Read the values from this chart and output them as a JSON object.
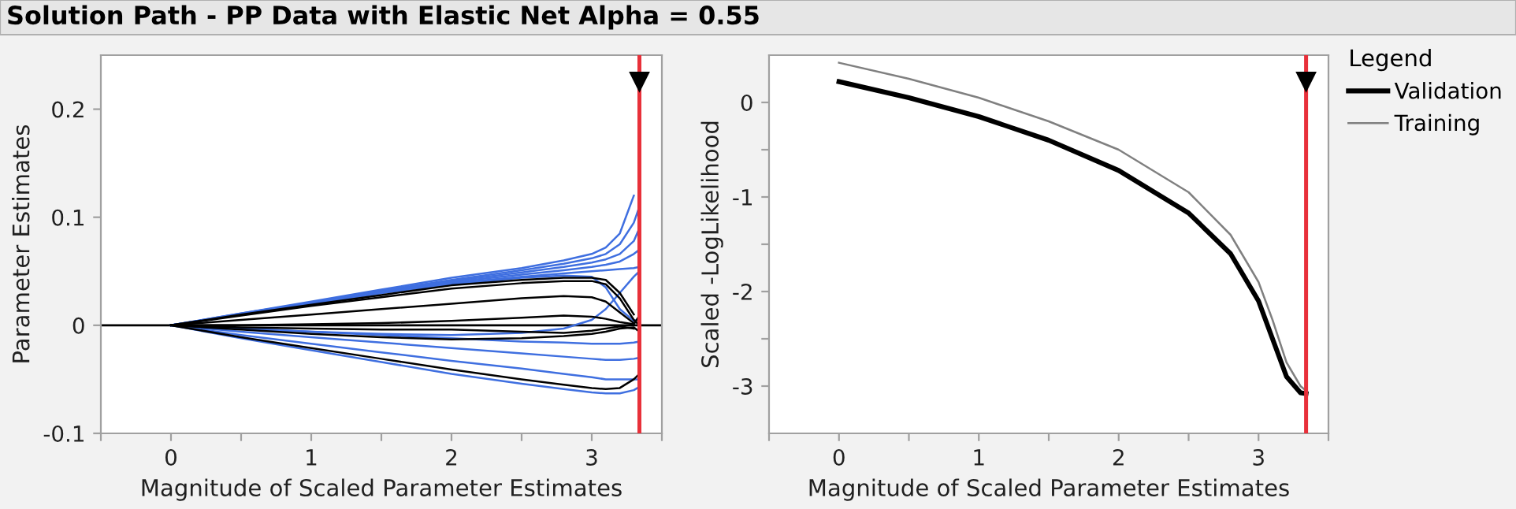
{
  "chart_data": [
    {
      "type": "line",
      "title": "Solution Path - PP Data with Elastic Net Alpha = 0.55",
      "xlabel": "Magnitude of Scaled Parameter Estimates",
      "ylabel": "Parameter Estimates",
      "x": [
        0,
        0.5,
        1,
        1.5,
        2,
        2.5,
        2.8,
        3.0,
        3.1,
        3.2,
        3.3,
        3.34
      ],
      "xlim": [
        -0.5,
        3.5
      ],
      "xticks": [
        {
          "value": -0.5,
          "label": null
        },
        0,
        {
          "value": 0.5,
          "label": null
        },
        1,
        {
          "value": 1.5,
          "label": null
        },
        2,
        {
          "value": 2.5,
          "label": null
        },
        3,
        {
          "value": 3.5,
          "label": null
        }
      ],
      "ylim": [
        -0.1,
        0.25
      ],
      "yticks": [
        -0.1,
        0,
        0.1,
        0.2
      ],
      "grid": false,
      "legend": false,
      "line_style": "solid",
      "marker": "none",
      "ref_lines": [
        {
          "axis": "y",
          "value": 0,
          "color": "#000000"
        },
        {
          "axis": "x",
          "value": 3.34,
          "color": "#e8303a"
        }
      ],
      "series": [
        {
          "color": "#3f6fe0",
          "values": [
            0,
            0.011,
            0.022,
            0.033,
            0.044,
            0.053,
            0.06,
            0.066,
            0.072,
            0.085,
            0.12,
            null
          ]
        },
        {
          "color": "#3f6fe0",
          "values": [
            0,
            0.011,
            0.021,
            0.032,
            0.042,
            0.051,
            0.057,
            0.062,
            0.066,
            0.075,
            0.095,
            0.11
          ]
        },
        {
          "color": "#3f6fe0",
          "values": [
            0,
            0.01,
            0.021,
            0.031,
            0.041,
            0.049,
            0.054,
            0.058,
            0.061,
            0.066,
            0.078,
            0.09
          ]
        },
        {
          "color": "#3f6fe0",
          "values": [
            0,
            0.01,
            0.02,
            0.03,
            0.04,
            0.047,
            0.051,
            0.054,
            0.056,
            0.059,
            0.066,
            0.07
          ]
        },
        {
          "color": "#3f6fe0",
          "values": [
            0,
            0.01,
            0.02,
            0.03,
            0.039,
            0.045,
            0.048,
            0.05,
            0.051,
            0.052,
            0.053,
            0.054
          ]
        },
        {
          "color": "#3f6fe0",
          "values": [
            0,
            0.01,
            0.02,
            0.03,
            0.038,
            0.044,
            0.046,
            0.045,
            0.035,
            0.015,
            0.004,
            0.006
          ]
        },
        {
          "color": "#000000",
          "values": [
            0,
            0.01,
            0.019,
            0.028,
            0.037,
            0.042,
            0.044,
            0.044,
            0.042,
            0.03,
            0.01,
            null
          ]
        },
        {
          "color": "#000000",
          "values": [
            0,
            0.009,
            0.018,
            0.026,
            0.034,
            0.039,
            0.041,
            0.041,
            0.038,
            0.025,
            0.005,
            0.0
          ]
        },
        {
          "color": "#000000",
          "values": [
            0,
            0.005,
            0.01,
            0.015,
            0.02,
            0.025,
            0.027,
            0.026,
            0.022,
            0.012,
            0.002,
            null
          ]
        },
        {
          "color": "#000000",
          "values": [
            0,
            0,
            0.001,
            0.002,
            0.004,
            0.007,
            0.009,
            0.008,
            0.006,
            0.003,
            0.001,
            0.009
          ]
        },
        {
          "color": "#000000",
          "values": [
            0,
            -0.002,
            -0.003,
            -0.004,
            -0.004,
            -0.006,
            -0.007,
            -0.005,
            -0.003,
            -0.001,
            -0.003,
            null
          ]
        },
        {
          "color": "#3f6fe0",
          "values": [
            0,
            -0.003,
            -0.006,
            -0.008,
            -0.009,
            -0.007,
            -0.003,
            0.005,
            0.015,
            0.03,
            0.045,
            0.05
          ]
        },
        {
          "color": "#3f6fe0",
          "values": [
            0,
            -0.012,
            -0.023,
            -0.034,
            -0.045,
            -0.054,
            -0.059,
            -0.062,
            -0.063,
            -0.063,
            -0.06,
            -0.057
          ]
        },
        {
          "color": "#000000",
          "values": [
            0,
            -0.011,
            -0.021,
            -0.031,
            -0.041,
            -0.05,
            -0.055,
            -0.058,
            -0.059,
            -0.058,
            -0.05,
            -0.045
          ]
        },
        {
          "color": "#3f6fe0",
          "values": [
            0,
            -0.009,
            -0.017,
            -0.025,
            -0.033,
            -0.04,
            -0.045,
            -0.048,
            -0.05,
            -0.05,
            -0.05,
            -0.05
          ]
        },
        {
          "color": "#3f6fe0",
          "values": [
            0,
            -0.006,
            -0.011,
            -0.016,
            -0.021,
            -0.026,
            -0.029,
            -0.031,
            -0.032,
            -0.032,
            -0.031,
            -0.03
          ]
        },
        {
          "color": "#3f6fe0",
          "values": [
            0,
            -0.003,
            -0.006,
            -0.009,
            -0.012,
            -0.015,
            -0.016,
            -0.017,
            -0.017,
            -0.017,
            -0.016,
            -0.015
          ]
        },
        {
          "color": "#000000",
          "values": [
            0,
            -0.004,
            -0.008,
            -0.011,
            -0.013,
            -0.012,
            -0.01,
            -0.008,
            -0.006,
            -0.003,
            -0.002,
            -0.006
          ]
        }
      ]
    },
    {
      "type": "line",
      "xlabel": "Magnitude of Scaled Parameter Estimates",
      "ylabel": "Scaled -LogLikelihood",
      "legend_title": "Legend",
      "x": [
        0,
        0.5,
        1,
        1.5,
        2,
        2.5,
        2.8,
        3.0,
        3.1,
        3.2,
        3.3,
        3.34
      ],
      "xlim": [
        -0.5,
        3.5
      ],
      "xticks": [
        {
          "value": -0.5,
          "label": null
        },
        0,
        {
          "value": 0.5,
          "label": null
        },
        1,
        {
          "value": 1.5,
          "label": null
        },
        2,
        {
          "value": 2.5,
          "label": null
        },
        3,
        {
          "value": 3.5,
          "label": null
        }
      ],
      "ylim": [
        -3.5,
        0.5
      ],
      "yticks": [
        -3,
        {
          "value": -2.5,
          "label": null
        },
        -2,
        {
          "value": -1.5,
          "label": null
        },
        -1,
        {
          "value": -0.5,
          "label": null
        },
        0
      ],
      "grid": false,
      "legend": "right",
      "line_style": "solid",
      "marker": "none",
      "ref_lines": [
        {
          "axis": "x",
          "value": 3.34,
          "color": "#e8303a"
        }
      ],
      "series": [
        {
          "name": "Validation",
          "color": "#000000",
          "values": [
            0.22,
            0.05,
            -0.15,
            -0.4,
            -0.72,
            -1.17,
            -1.6,
            -2.1,
            -2.5,
            -2.9,
            -3.07,
            -3.08
          ]
        },
        {
          "name": "Training",
          "color": "#808080",
          "values": [
            0.42,
            0.25,
            0.05,
            -0.2,
            -0.5,
            -0.95,
            -1.4,
            -1.9,
            -2.3,
            -2.75,
            -3.0,
            -3.05
          ]
        }
      ]
    }
  ]
}
